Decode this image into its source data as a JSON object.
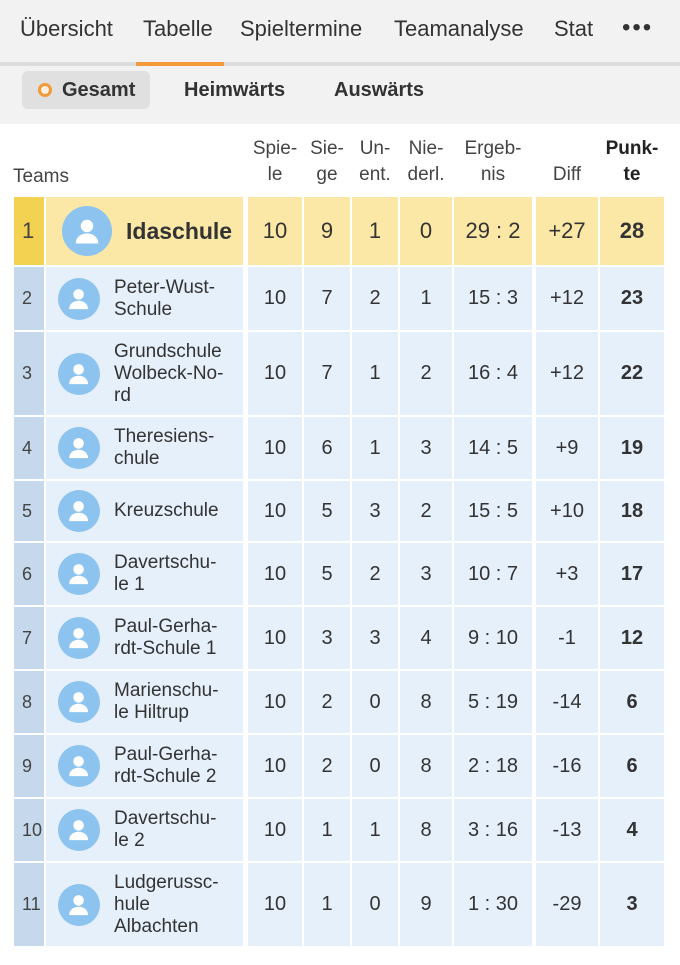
{
  "tabs": [
    "Übersicht",
    "Tabelle",
    "Spieltermine",
    "Teamanalyse",
    "Stat"
  ],
  "more_icon": "•••",
  "subtabs": [
    "Gesamt",
    "Heimwärts",
    "Auswärts"
  ],
  "columns": {
    "teams": "Teams",
    "spiele": [
      "Spie-",
      "le"
    ],
    "siege": [
      "Sie-",
      "ge"
    ],
    "unent": [
      "Un-",
      "ent."
    ],
    "niederl": [
      "Nie-",
      "derl."
    ],
    "ergebnis": [
      "Ergeb-",
      "nis"
    ],
    "diff": "Diff",
    "punkte": [
      "Punk-",
      "te"
    ]
  },
  "rows": [
    {
      "rank": "1",
      "team": [
        "Idaschule"
      ],
      "spiele": "10",
      "siege": "9",
      "unent": "1",
      "niederl": "0",
      "ergebnis": "29 : 2",
      "diff": "+27",
      "punkte": "28"
    },
    {
      "rank": "2",
      "team": [
        "Peter-Wust-",
        "Schule"
      ],
      "spiele": "10",
      "siege": "7",
      "unent": "2",
      "niederl": "1",
      "ergebnis": "15 : 3",
      "diff": "+12",
      "punkte": "23"
    },
    {
      "rank": "3",
      "team": [
        "Grundschule",
        "Wolbeck-No-",
        "rd"
      ],
      "spiele": "10",
      "siege": "7",
      "unent": "1",
      "niederl": "2",
      "ergebnis": "16 : 4",
      "diff": "+12",
      "punkte": "22"
    },
    {
      "rank": "4",
      "team": [
        "Theresiens-",
        "chule"
      ],
      "spiele": "10",
      "siege": "6",
      "unent": "1",
      "niederl": "3",
      "ergebnis": "14 : 5",
      "diff": "+9",
      "punkte": "19"
    },
    {
      "rank": "5",
      "team": [
        "Kreuzschule"
      ],
      "spiele": "10",
      "siege": "5",
      "unent": "3",
      "niederl": "2",
      "ergebnis": "15 : 5",
      "diff": "+10",
      "punkte": "18"
    },
    {
      "rank": "6",
      "team": [
        "Davertschu-",
        "le 1"
      ],
      "spiele": "10",
      "siege": "5",
      "unent": "2",
      "niederl": "3",
      "ergebnis": "10 : 7",
      "diff": "+3",
      "punkte": "17"
    },
    {
      "rank": "7",
      "team": [
        "Paul-Gerha-",
        "rdt-Schule 1"
      ],
      "spiele": "10",
      "siege": "3",
      "unent": "3",
      "niederl": "4",
      "ergebnis": "9 : 10",
      "diff": "-1",
      "punkte": "12"
    },
    {
      "rank": "8",
      "team": [
        "Marienschu-",
        "le Hiltrup"
      ],
      "spiele": "10",
      "siege": "2",
      "unent": "0",
      "niederl": "8",
      "ergebnis": "5 : 19",
      "diff": "-14",
      "punkte": "6"
    },
    {
      "rank": "9",
      "team": [
        "Paul-Gerha-",
        "rdt-Schule 2"
      ],
      "spiele": "10",
      "siege": "2",
      "unent": "0",
      "niederl": "8",
      "ergebnis": "2 : 18",
      "diff": "-16",
      "punkte": "6"
    },
    {
      "rank": "10",
      "team": [
        "Davertschu-",
        "le 2"
      ],
      "spiele": "10",
      "siege": "1",
      "unent": "1",
      "niederl": "8",
      "ergebnis": "3 : 16",
      "diff": "-13",
      "punkte": "4"
    },
    {
      "rank": "11",
      "team": [
        "Ludgerussc-",
        "hule",
        "Albachten"
      ],
      "spiele": "10",
      "siege": "1",
      "unent": "0",
      "niederl": "9",
      "ergebnis": "1 : 30",
      "diff": "-29",
      "punkte": "3"
    }
  ],
  "colors": {
    "accent": "#f29a3a",
    "leader_bg": "#fbe8a6",
    "leader_rank": "#f2d250",
    "row_bg": "#e6f0fb",
    "rank_bg": "#c6d9ec",
    "avatar": "#8cc4ef"
  },
  "icons": {
    "avatar": "user-avatar-icon",
    "selected": "radio-dot-icon"
  }
}
